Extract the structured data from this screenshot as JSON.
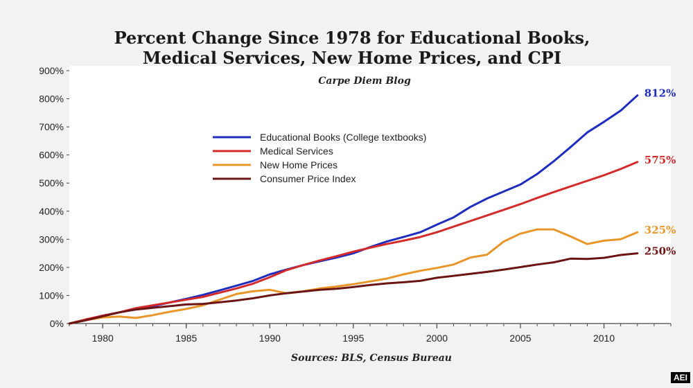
{
  "chart_data": {
    "type": "line",
    "title_line1": "Percent Change Since 1978 for Educational Books,",
    "title_line2": "Medical Services, New Home Prices, and CPI",
    "subtitle": "Carpe Diem Blog",
    "source": "Sources: BLS, Census Bureau",
    "xlim": [
      1978,
      2014
    ],
    "ylim": [
      0,
      900
    ],
    "y_ticks": [
      0,
      100,
      200,
      300,
      400,
      500,
      600,
      700,
      800,
      900
    ],
    "y_tick_labels": [
      "0%",
      "100%",
      "200%",
      "300%",
      "400%",
      "500%",
      "600%",
      "700%",
      "800%",
      "900%"
    ],
    "x_ticks": [
      1980,
      1985,
      1990,
      1995,
      2000,
      2005,
      2010
    ],
    "x_tick_labels": [
      "1980",
      "1985",
      "1990",
      "1995",
      "2000",
      "2005",
      "2010"
    ],
    "legend_position": "center-left",
    "grid": false,
    "series": [
      {
        "name": "Educational Books  (College textbooks)",
        "color": "#1f2dbf",
        "end_label": "812%",
        "x": [
          1978,
          1979,
          1980,
          1981,
          1982,
          1983,
          1984,
          1985,
          1986,
          1987,
          1988,
          1989,
          1990,
          1991,
          1992,
          1993,
          1994,
          1995,
          1996,
          1997,
          1998,
          1999,
          2000,
          2001,
          2002,
          2003,
          2004,
          2005,
          2006,
          2007,
          2008,
          2009,
          2010,
          2011,
          2012
        ],
        "values": [
          0,
          12,
          28,
          40,
          52,
          62,
          75,
          88,
          102,
          118,
          135,
          152,
          175,
          192,
          208,
          222,
          235,
          250,
          272,
          292,
          308,
          325,
          352,
          378,
          415,
          445,
          470,
          495,
          532,
          578,
          628,
          680,
          718,
          758,
          812
        ]
      },
      {
        "name": "Medical Services",
        "color": "#d42a2a",
        "end_label": "575%",
        "x": [
          1978,
          1979,
          1980,
          1981,
          1982,
          1983,
          1984,
          1985,
          1986,
          1987,
          1988,
          1989,
          1990,
          1991,
          1992,
          1993,
          1994,
          1995,
          1996,
          1997,
          1998,
          1999,
          2000,
          2001,
          2002,
          2003,
          2004,
          2005,
          2006,
          2007,
          2008,
          2009,
          2010,
          2011,
          2012
        ],
        "values": [
          0,
          15,
          28,
          40,
          55,
          65,
          75,
          85,
          95,
          110,
          125,
          142,
          165,
          190,
          208,
          225,
          240,
          256,
          270,
          283,
          295,
          308,
          325,
          345,
          365,
          385,
          405,
          425,
          447,
          468,
          488,
          508,
          528,
          550,
          575
        ]
      },
      {
        "name": "New Home Prices",
        "color": "#e8962a",
        "end_label": "325%",
        "x": [
          1978,
          1979,
          1980,
          1981,
          1982,
          1983,
          1984,
          1985,
          1986,
          1987,
          1988,
          1989,
          1990,
          1991,
          1992,
          1993,
          1994,
          1995,
          1996,
          1997,
          1998,
          1999,
          2000,
          2001,
          2002,
          2003,
          2004,
          2005,
          2006,
          2007,
          2008,
          2009,
          2010,
          2011,
          2012
        ],
        "values": [
          0,
          12,
          22,
          25,
          20,
          30,
          42,
          52,
          65,
          85,
          105,
          115,
          120,
          108,
          115,
          125,
          132,
          140,
          150,
          160,
          175,
          188,
          198,
          210,
          235,
          245,
          292,
          320,
          335,
          335,
          310,
          283,
          295,
          300,
          325
        ]
      },
      {
        "name": "Consumer Price Index",
        "color": "#6b1414",
        "end_label": "250%",
        "x": [
          1978,
          1979,
          1980,
          1981,
          1982,
          1983,
          1984,
          1985,
          1986,
          1987,
          1988,
          1989,
          1990,
          1991,
          1992,
          1993,
          1994,
          1995,
          1996,
          1997,
          1998,
          1999,
          2000,
          2001,
          2002,
          2003,
          2004,
          2005,
          2006,
          2007,
          2008,
          2009,
          2010,
          2011,
          2012
        ],
        "values": [
          0,
          12,
          26,
          40,
          50,
          56,
          62,
          68,
          70,
          76,
          82,
          90,
          100,
          108,
          114,
          120,
          124,
          130,
          137,
          143,
          147,
          152,
          163,
          170,
          177,
          184,
          192,
          201,
          210,
          218,
          231,
          230,
          234,
          244,
          250
        ]
      }
    ]
  },
  "logo": "AEI"
}
